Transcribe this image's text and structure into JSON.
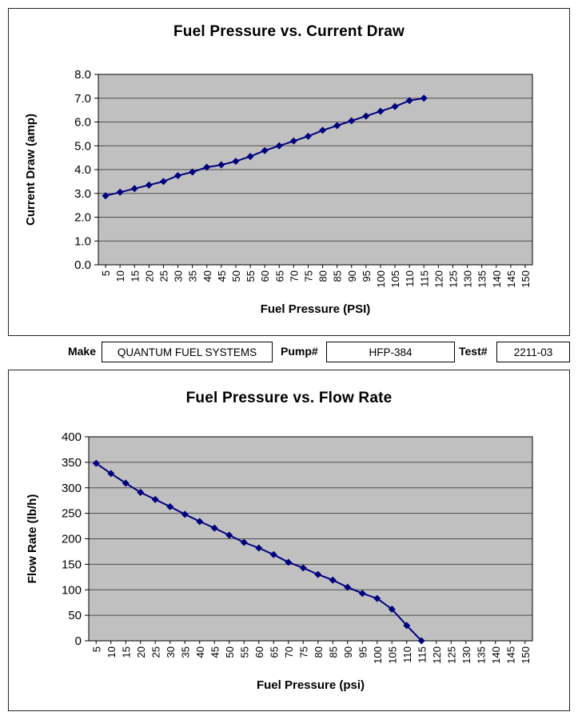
{
  "colors": {
    "line": "#000080",
    "plot_bg": "#c0c0c0",
    "grid": "#4d4d4d",
    "axis": "#000000"
  },
  "fields": {
    "make_label": "Make",
    "make_value": "QUANTUM FUEL SYSTEMS",
    "pump_label": "Pump#",
    "pump_value": "HFP-384",
    "test_label": "Test#",
    "test_value": "2211-03"
  },
  "chart_data": [
    {
      "type": "line",
      "title": "Fuel Pressure vs. Current Draw",
      "xlabel": "Fuel Pressure (PSI)",
      "ylabel": "Current Draw (amp)",
      "x_ticks": [
        5,
        10,
        15,
        20,
        25,
        30,
        35,
        40,
        45,
        50,
        55,
        60,
        65,
        70,
        75,
        80,
        85,
        90,
        95,
        100,
        105,
        110,
        115,
        120,
        125,
        130,
        135,
        140,
        145,
        150
      ],
      "x": [
        5,
        10,
        15,
        20,
        25,
        30,
        35,
        40,
        45,
        50,
        55,
        60,
        65,
        70,
        75,
        80,
        85,
        90,
        95,
        100,
        105,
        110,
        115
      ],
      "y": [
        2.9,
        3.05,
        3.2,
        3.35,
        3.5,
        3.75,
        3.9,
        4.1,
        4.2,
        4.35,
        4.55,
        4.8,
        5.0,
        5.2,
        5.4,
        5.65,
        5.85,
        6.05,
        6.25,
        6.45,
        6.65,
        6.9,
        7.0
      ],
      "ylim": [
        0,
        8
      ],
      "ystep": 1,
      "y_decimals": 1,
      "grid": "horizontal",
      "legend": "none",
      "marker": "diamond"
    },
    {
      "type": "line",
      "title": "Fuel Pressure vs. Flow Rate",
      "xlabel": "Fuel Pressure (psi)",
      "ylabel": "Flow Rate (lb/h)",
      "x_ticks": [
        5,
        10,
        15,
        20,
        25,
        30,
        35,
        40,
        45,
        50,
        55,
        60,
        65,
        70,
        75,
        80,
        85,
        90,
        95,
        100,
        105,
        110,
        115,
        120,
        125,
        130,
        135,
        140,
        145,
        150
      ],
      "x": [
        5,
        10,
        15,
        20,
        25,
        30,
        35,
        40,
        45,
        50,
        55,
        60,
        65,
        70,
        75,
        80,
        85,
        90,
        95,
        100,
        105,
        110,
        115
      ],
      "y": [
        348,
        328,
        309,
        291,
        277,
        263,
        248,
        234,
        221,
        207,
        193,
        182,
        169,
        154,
        143,
        130,
        119,
        105,
        93,
        83,
        62,
        30,
        0
      ],
      "ylim": [
        0,
        400
      ],
      "ystep": 50,
      "y_decimals": 0,
      "grid": "horizontal",
      "legend": "none",
      "marker": "diamond"
    }
  ]
}
